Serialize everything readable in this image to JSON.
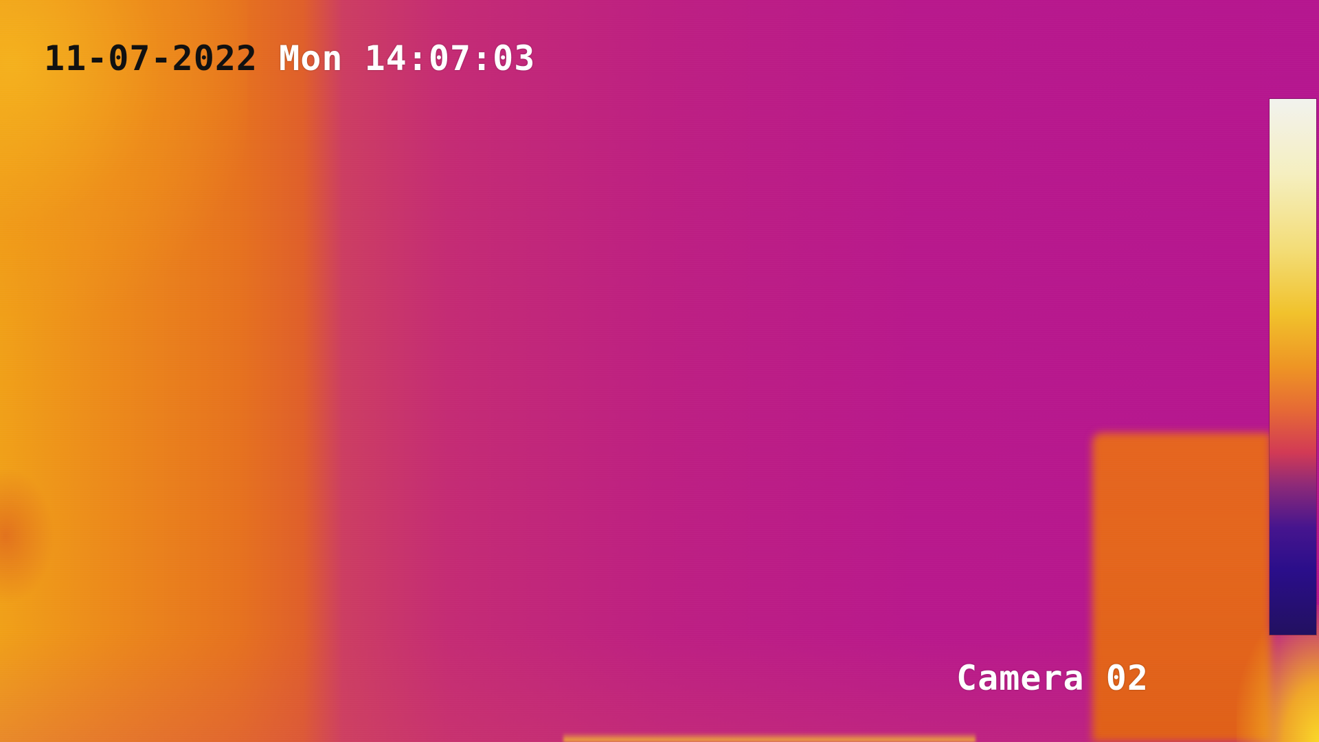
{
  "overlay": {
    "date": "11-07-2022",
    "day": "Mon",
    "time": "14:07:03",
    "camera_label": "Camera 02"
  },
  "palette": {
    "background": "#b8178f",
    "warm_region": "#e6721e",
    "hot_region": "#f5d028",
    "timestamp_dark_color": "#111111",
    "osd_light_color": "#ffffff",
    "scale_colors": [
      "#f2f2ee",
      "#f1c22c",
      "#ee9524",
      "#d23a55",
      "#2a0e8a",
      "#221060"
    ]
  },
  "icons": {
    "temperature_scale": "thermal-color-scale"
  }
}
